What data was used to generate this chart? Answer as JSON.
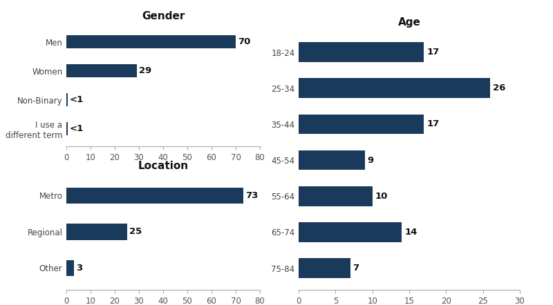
{
  "gender": {
    "title": "Gender",
    "categories": [
      "Men",
      "Women",
      "Non-Binary",
      "I use a\ndifferent term"
    ],
    "values": [
      70,
      29,
      0.5,
      0.5
    ],
    "labels": [
      "70",
      "29",
      "<1",
      "<1"
    ],
    "xlim": [
      0,
      80
    ],
    "xticks": [
      0,
      10,
      20,
      30,
      40,
      50,
      60,
      70,
      80
    ]
  },
  "location": {
    "title": "Location",
    "categories": [
      "Metro",
      "Regional",
      "Other"
    ],
    "values": [
      73,
      25,
      3
    ],
    "labels": [
      "73",
      "25",
      "3"
    ],
    "xlim": [
      0,
      80
    ],
    "xticks": [
      0,
      10,
      20,
      30,
      40,
      50,
      60,
      70,
      80
    ]
  },
  "age": {
    "title": "Age",
    "categories": [
      "18-24",
      "25-34",
      "35-44",
      "45-54",
      "55-64",
      "65-74",
      "75-84"
    ],
    "values": [
      17,
      26,
      17,
      9,
      10,
      14,
      7
    ],
    "labels": [
      "17",
      "26",
      "17",
      "9",
      "10",
      "14",
      "7"
    ],
    "xlim": [
      0,
      30
    ],
    "xticks": [
      0,
      5,
      10,
      15,
      20,
      25,
      30
    ]
  },
  "bar_color": "#1a3a5c",
  "label_fontsize": 9.5,
  "title_fontsize": 11,
  "tick_fontsize": 8.5,
  "category_fontsize": 8.5
}
